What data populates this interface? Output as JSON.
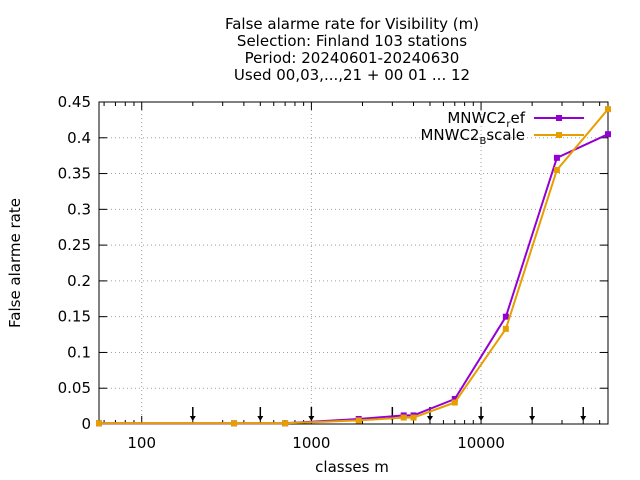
{
  "chart_data": {
    "type": "line",
    "title_lines": [
      "False alarme rate  for Visibility (m)",
      "Selection: Finland    103 stations",
      "Period: 20240601-20240630",
      "Used 00,03,...,21 + 00 01 ... 12"
    ],
    "xlabel": "classes m",
    "ylabel": "False alarme rate",
    "x_scale": "log",
    "xlim": [
      56,
      56000
    ],
    "ylim": [
      0,
      0.45
    ],
    "x_ticks": [
      {
        "value": 100,
        "label": "100"
      },
      {
        "value": 1000,
        "label": "1000"
      },
      {
        "value": 10000,
        "label": "10000"
      }
    ],
    "y_ticks": [
      {
        "value": 0,
        "label": "0"
      },
      {
        "value": 0.05,
        "label": "0.05"
      },
      {
        "value": 0.1,
        "label": "0.1"
      },
      {
        "value": 0.15,
        "label": "0.15"
      },
      {
        "value": 0.2,
        "label": "0.2"
      },
      {
        "value": 0.25,
        "label": "0.25"
      },
      {
        "value": 0.3,
        "label": "0.3"
      },
      {
        "value": 0.35,
        "label": "0.35"
      },
      {
        "value": 0.4,
        "label": "0.4"
      },
      {
        "value": 0.45,
        "label": "0.45"
      }
    ],
    "grid": true,
    "legend_position": "top-right",
    "class_limit_arrows": [
      200,
      500,
      1000,
      3000,
      5000,
      10000,
      20000,
      40000
    ],
    "series": [
      {
        "name_base": "MNWC2",
        "name_sub": "r",
        "name_rest": "ef",
        "color": "#9400d3",
        "x": [
          56,
          350,
          700,
          1900,
          3500,
          4000,
          7000,
          14000,
          28000,
          56000
        ],
        "y": [
          0.001,
          0.001,
          0.001,
          0.007,
          0.012,
          0.012,
          0.035,
          0.15,
          0.372,
          0.405
        ]
      },
      {
        "name_base": "MNWC2",
        "name_sub": "B",
        "name_rest": "scale",
        "color": "#e69f00",
        "x": [
          56,
          350,
          700,
          1900,
          3500,
          4000,
          7000,
          14000,
          28000,
          56000
        ],
        "y": [
          0.001,
          0.001,
          0.001,
          0.005,
          0.009,
          0.009,
          0.03,
          0.133,
          0.355,
          0.44
        ]
      }
    ]
  }
}
